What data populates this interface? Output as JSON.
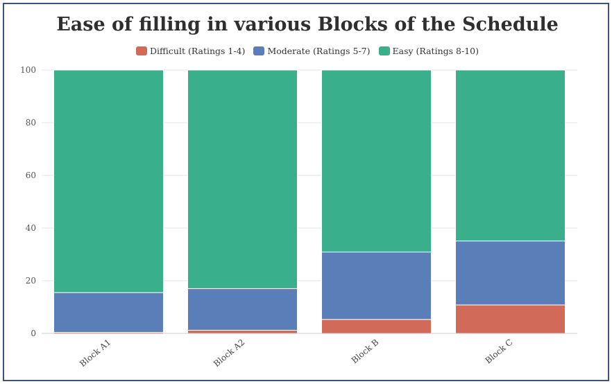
{
  "chart_data": {
    "type": "bar",
    "stacked": true,
    "title": "Ease of filling in various Blocks of the Schedule",
    "categories": [
      "Block A1",
      "Block A2",
      "Block B",
      "Block C"
    ],
    "series": [
      {
        "name": "Difficult (Ratings 1-4)",
        "color": "#d26a5a",
        "values": [
          0.4,
          1.2,
          5.3,
          10.8
        ]
      },
      {
        "name": "Moderate (Ratings 5-7)",
        "color": "#5a7fb8",
        "values": [
          15.1,
          15.8,
          25.6,
          24.3
        ]
      },
      {
        "name": "Easy (Ratings 8-10)",
        "color": "#3aaf8c",
        "values": [
          84.5,
          83.0,
          69.1,
          64.9
        ]
      }
    ],
    "ylim": [
      0,
      100
    ],
    "yticks": [
      0,
      20,
      40,
      60,
      80,
      100
    ],
    "grid": true,
    "legend": "top-center"
  }
}
